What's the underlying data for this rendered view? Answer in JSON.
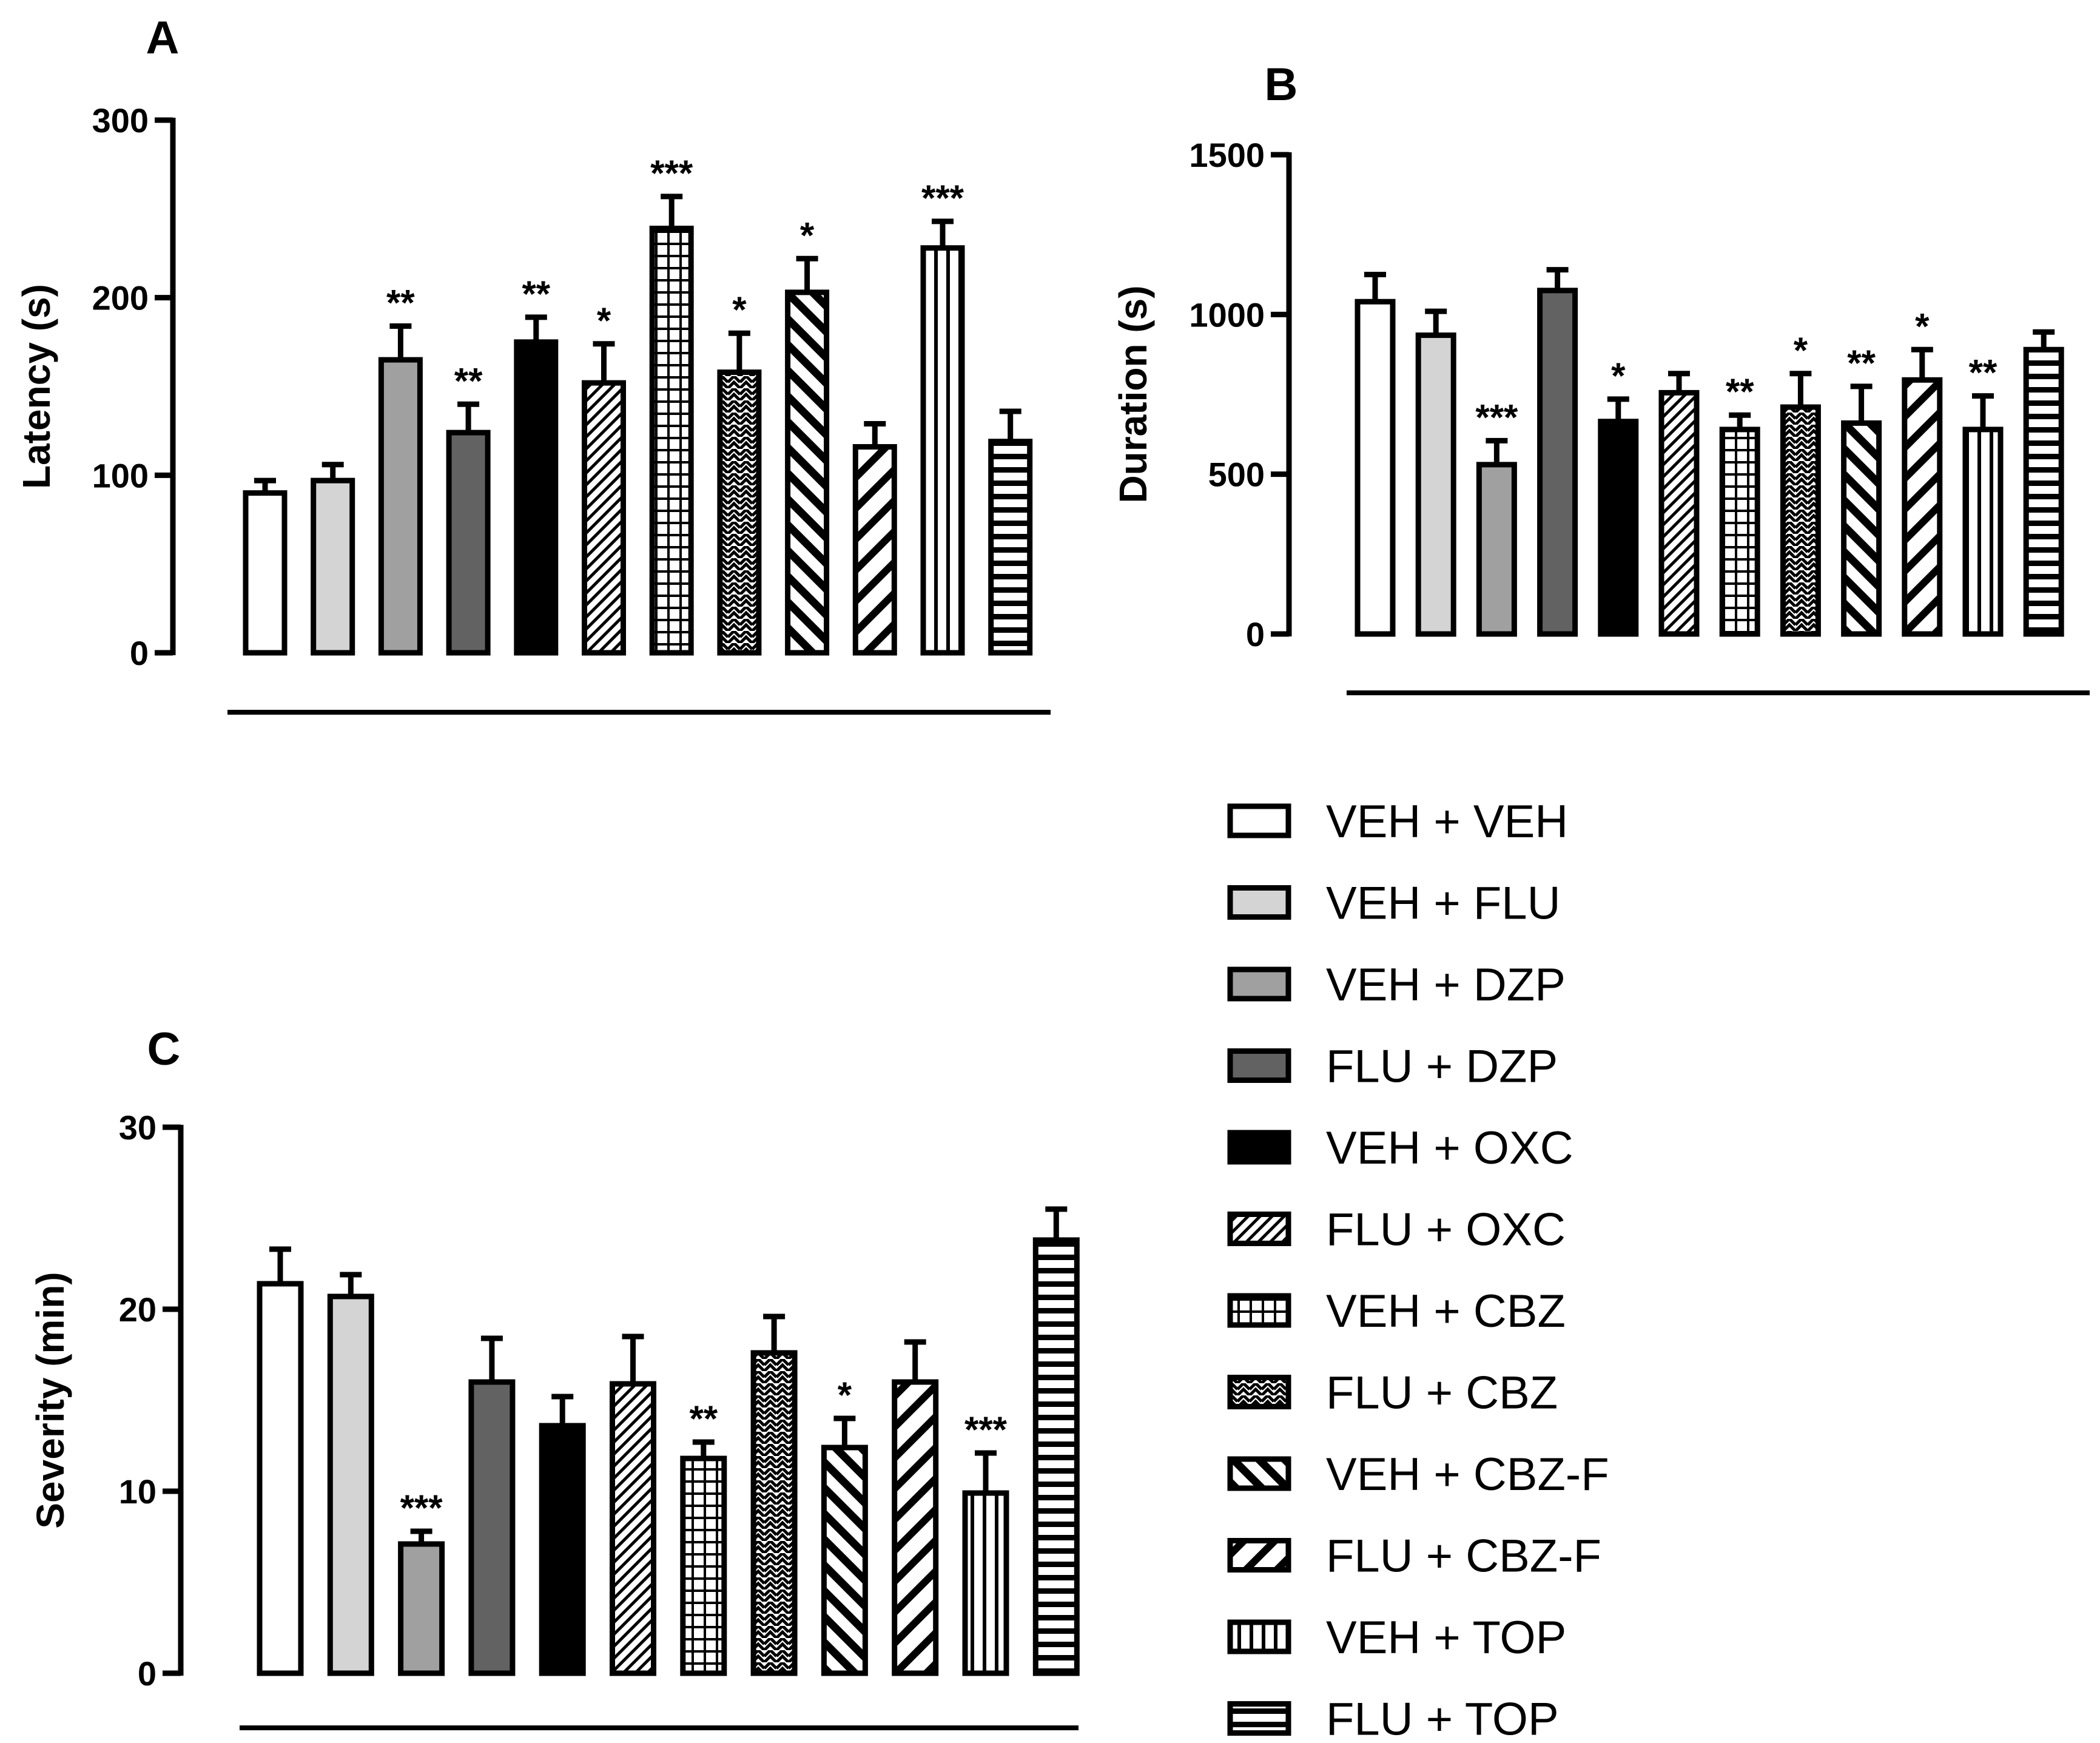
{
  "patterns": [
    "white",
    "lightgray",
    "midgray",
    "darkgray",
    "black",
    "diag-fine",
    "grid",
    "zigzag",
    "diag-bold",
    "diag-wide",
    "vstripe",
    "hstripe"
  ],
  "legend": [
    "VEH + VEH",
    "VEH + FLU",
    "VEH + DZP",
    "FLU + DZP",
    "VEH + OXC",
    "FLU + OXC",
    "VEH + CBZ",
    "FLU + CBZ",
    "VEH + CBZ-F",
    "FLU + CBZ-F",
    "VEH + TOP",
    "FLU + TOP"
  ],
  "chart_data": [
    {
      "panel": "A",
      "type": "bar",
      "ylabel": "Latency (s)",
      "ylim": [
        0,
        300
      ],
      "yticks": [
        "0",
        "100",
        "200",
        "300"
      ],
      "values": [
        90,
        97,
        165,
        124,
        175,
        152,
        239,
        158,
        203,
        116,
        228,
        119
      ],
      "errors": [
        7,
        9,
        19,
        16,
        14,
        22,
        18,
        22,
        19,
        13,
        15,
        17
      ],
      "significance": [
        "",
        "",
        "**",
        "**",
        "**",
        "*",
        "***",
        "*",
        "*",
        "",
        "***",
        ""
      ]
    },
    {
      "panel": "B",
      "type": "bar",
      "ylabel": "Duration (s)",
      "ylim": [
        0,
        1500
      ],
      "yticks": [
        "0",
        "500",
        "1000",
        "1500"
      ],
      "values": [
        1040,
        935,
        530,
        1075,
        665,
        755,
        640,
        710,
        660,
        795,
        640,
        890
      ],
      "errors": [
        85,
        75,
        75,
        65,
        70,
        60,
        45,
        105,
        115,
        95,
        105,
        55
      ],
      "significance": [
        "",
        "",
        "***",
        "",
        "*",
        "",
        "**",
        "*",
        "**",
        "*",
        "**",
        ""
      ]
    },
    {
      "panel": "C",
      "type": "bar",
      "ylabel": "Severity (min)",
      "ylim": [
        0,
        30
      ],
      "yticks": [
        "0",
        "10",
        "20",
        "30"
      ],
      "values": [
        21.4,
        20.7,
        7.1,
        16.0,
        13.6,
        15.9,
        11.8,
        17.6,
        12.4,
        16.0,
        9.9,
        23.8
      ],
      "errors": [
        1.9,
        1.2,
        0.7,
        2.4,
        1.6,
        2.6,
        0.9,
        2.0,
        1.6,
        2.2,
        2.2,
        1.7
      ],
      "significance": [
        "",
        "",
        "***",
        "",
        "",
        "",
        "**",
        "",
        "*",
        "",
        "***",
        ""
      ]
    }
  ]
}
